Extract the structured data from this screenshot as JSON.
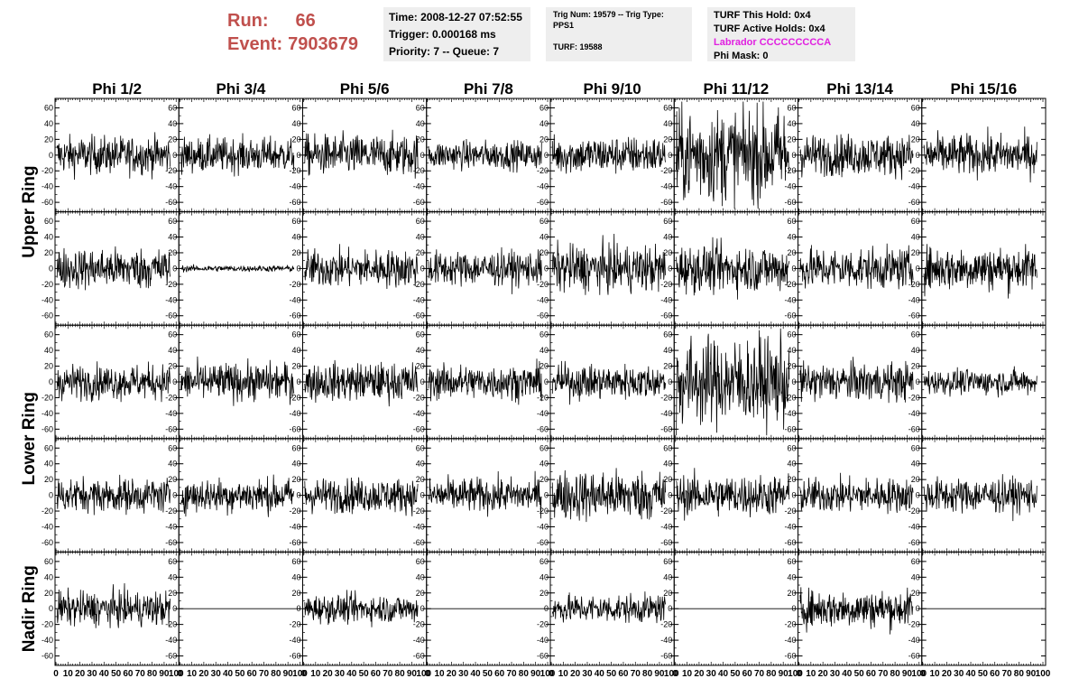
{
  "header": {
    "run_label": "Run:",
    "run_value": "66",
    "event_label": "Event:",
    "event_value": "7903679",
    "time": "Time: 2008-12-27 07:52:55",
    "trigger": "Trigger: 0.000168 ms",
    "priority": "Priority: 7 -- Queue: 7",
    "trig_num": "Trig Num: 19579 -- Trig Type: PPS1",
    "turf": "TURF: 19588",
    "turf_hold": "TURF This Hold: 0x4",
    "turf_active": "TURF Active Holds: 0x4",
    "labrador": "Labrador CCCCCCCCCA",
    "phi_mask": "Phi Mask: 0"
  },
  "colors": {
    "run_text": "#c0504d",
    "labrador_text": "#e020e0",
    "info_bg": "#eeeeee",
    "trace": "#000000"
  },
  "chart_data": {
    "type": "line",
    "columns": [
      "Phi 1/2",
      "Phi 3/4",
      "Phi 5/6",
      "Phi 7/8",
      "Phi 9/10",
      "Phi 11/12",
      "Phi 13/14",
      "Phi 15/16"
    ],
    "rows": [
      "Upper Ring",
      "Upper Ring",
      "Lower Ring",
      "Lower Ring",
      "Nadir Ring"
    ],
    "row_titles": [
      "Upper Ring",
      "Lower Ring",
      "Nadir Ring"
    ],
    "xlim": [
      0,
      100
    ],
    "ylim": [
      -72,
      72
    ],
    "x_ticks": [
      0,
      10,
      20,
      30,
      40,
      50,
      60,
      70,
      80,
      90,
      100
    ],
    "x_tick_labels": [
      "0",
      "10",
      "20",
      "30",
      "40",
      "50",
      "60",
      "70",
      "80",
      "90",
      "100"
    ],
    "y_ticks": [
      -60,
      -40,
      -20,
      0,
      20,
      40,
      60
    ],
    "y_tick_labels": [
      "-60",
      "-40",
      "-20",
      "0",
      "20",
      "40",
      "60"
    ],
    "amplitudes": [
      [
        12,
        11,
        13,
        9,
        12,
        30,
        13,
        13
      ],
      [
        13,
        2,
        12,
        11,
        15,
        15,
        13,
        14
      ],
      [
        11,
        12,
        12,
        11,
        11,
        28,
        12,
        8
      ],
      [
        11,
        11,
        11,
        11,
        16,
        13,
        11,
        11
      ],
      [
        11,
        0,
        9,
        0,
        9,
        0,
        12,
        0
      ]
    ]
  }
}
